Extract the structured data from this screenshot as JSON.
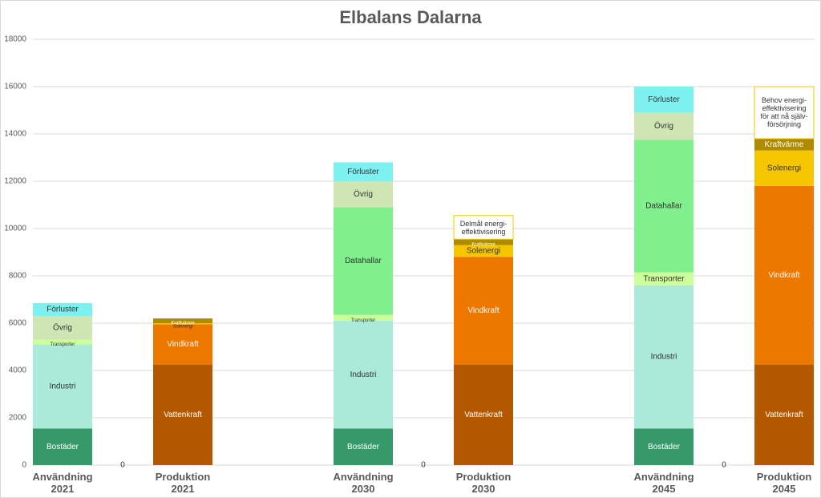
{
  "chart_data": {
    "type": "stacked_bar",
    "title": "Elbalans Dalarna",
    "categories": [
      "Användning 2021",
      null,
      "Produktion 2021",
      null,
      null,
      "Användning 2030",
      null,
      "Produktion 2030",
      null,
      null,
      "Användning 2045",
      null,
      "Produktion 2045"
    ],
    "ylim": [
      0,
      18000
    ],
    "yticks": [
      0,
      2000,
      4000,
      6000,
      8000,
      10000,
      12000,
      14000,
      16000,
      18000
    ],
    "grid": true,
    "series": [
      {
        "name": "Bostäder",
        "color": "#35996a",
        "values": [
          1550,
          null,
          null,
          null,
          null,
          1550,
          null,
          null,
          null,
          null,
          1550,
          null,
          null
        ]
      },
      {
        "name": "Industri",
        "color": "#abe9d8",
        "values": [
          3550,
          null,
          null,
          null,
          null,
          4550,
          null,
          null,
          null,
          null,
          6050,
          null,
          null
        ]
      },
      {
        "name": "Transporter",
        "color": "#ccff99",
        "values": [
          200,
          null,
          null,
          null,
          null,
          250,
          null,
          null,
          null,
          null,
          550,
          null,
          null
        ]
      },
      {
        "name": "Datahallar",
        "color": "#80f08c",
        "values": [
          null,
          null,
          null,
          null,
          null,
          4550,
          null,
          null,
          null,
          null,
          5600,
          null,
          null
        ]
      },
      {
        "name": "Övrig",
        "color": "#cfe6b4",
        "values": [
          1000,
          null,
          null,
          null,
          null,
          1100,
          null,
          null,
          null,
          null,
          1150,
          null,
          null
        ]
      },
      {
        "name": "Förluster",
        "color": "#7ff0f0",
        "values": [
          550,
          null,
          null,
          null,
          null,
          800,
          null,
          null,
          null,
          null,
          1100,
          null,
          null
        ]
      },
      {
        "name": "Vattenkraft",
        "color": "#b35900",
        "values": [
          null,
          null,
          4250,
          null,
          null,
          null,
          null,
          4250,
          null,
          null,
          null,
          null,
          4250
        ]
      },
      {
        "name": "Vindkraft",
        "color": "#ee7700",
        "values": [
          null,
          null,
          1700,
          null,
          null,
          null,
          null,
          4550,
          null,
          null,
          null,
          null,
          7550
        ]
      },
      {
        "name": "Solenergi",
        "color": "#f5c600",
        "values": [
          null,
          null,
          50,
          null,
          null,
          null,
          null,
          500,
          null,
          null,
          null,
          null,
          1500
        ]
      },
      {
        "name": "Kraftvärme",
        "color": "#b08b00",
        "values": [
          null,
          null,
          200,
          null,
          null,
          null,
          null,
          250,
          null,
          null,
          null,
          null,
          500
        ]
      },
      {
        "name": "Delmål energi-effektivisering",
        "color": "#ffffff",
        "border": "#f5c600",
        "values": [
          null,
          null,
          null,
          null,
          null,
          null,
          null,
          1000,
          null,
          null,
          null,
          null,
          null
        ]
      },
      {
        "name": "Behov energi-effektivisering för att nå själv-försörjning",
        "color": "#ffffff",
        "border": "#f5c600",
        "values": [
          null,
          null,
          null,
          null,
          null,
          null,
          null,
          null,
          null,
          null,
          null,
          null,
          2200
        ]
      },
      {
        "color": "#ffffff",
        "values": [
          null,
          0,
          null,
          null,
          null,
          null,
          0,
          null,
          null,
          null,
          null,
          0,
          null
        ]
      }
    ]
  }
}
